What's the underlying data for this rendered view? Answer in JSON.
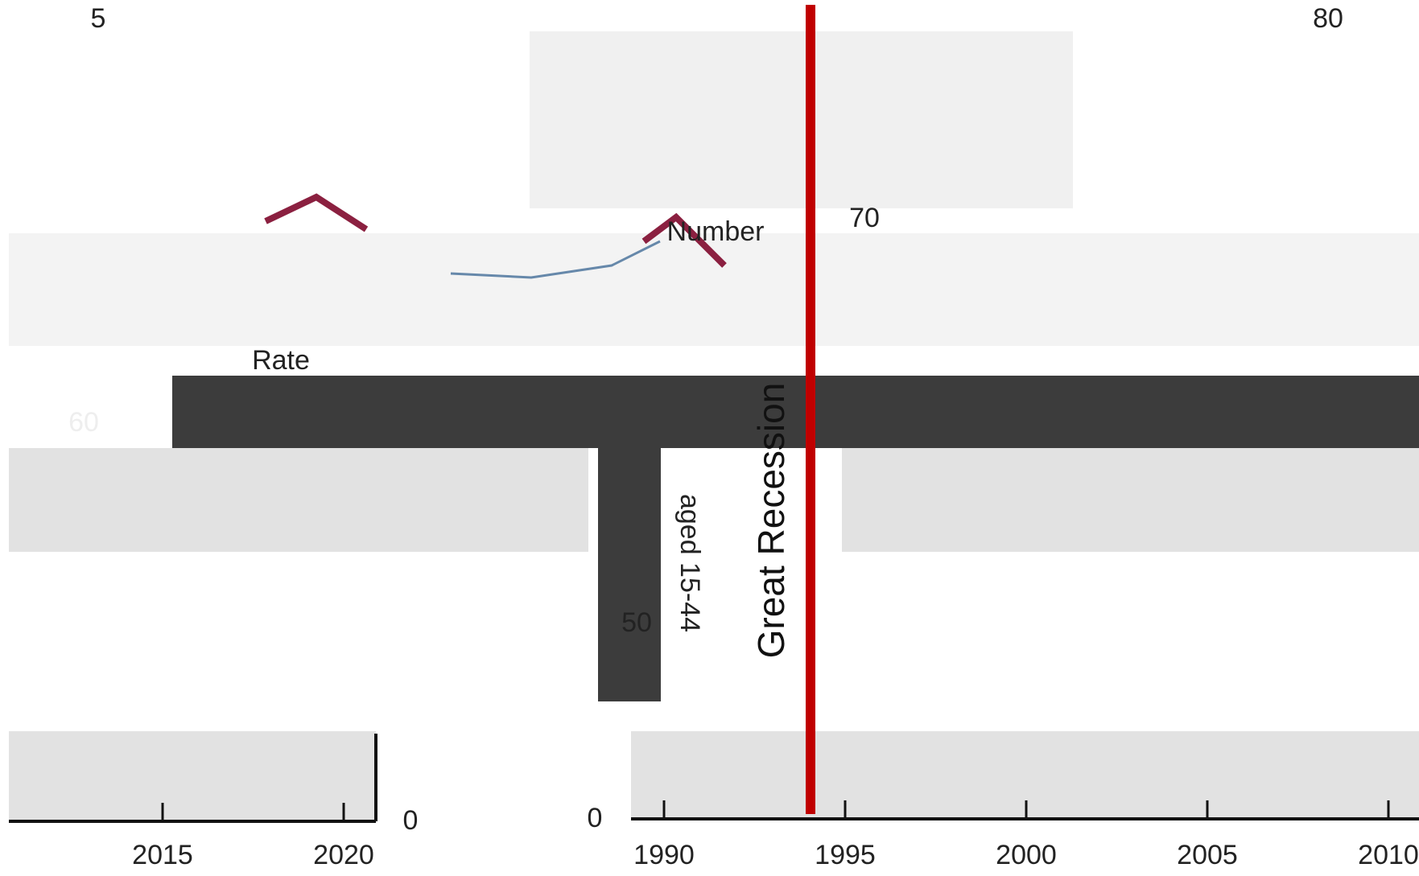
{
  "left_panel": {
    "x_ticks": [
      "2015",
      "2020"
    ],
    "y_labels": [
      "5",
      "60",
      "0"
    ],
    "label": "Rate"
  },
  "right_panel": {
    "x_ticks": [
      "1990",
      "1995",
      "2000",
      "2005",
      "2010"
    ],
    "y_labels": [
      "80",
      "70",
      "50",
      "0"
    ],
    "label": "Number"
  },
  "annotation": "Great Recession",
  "rotated_label": "aged 15-44"
}
